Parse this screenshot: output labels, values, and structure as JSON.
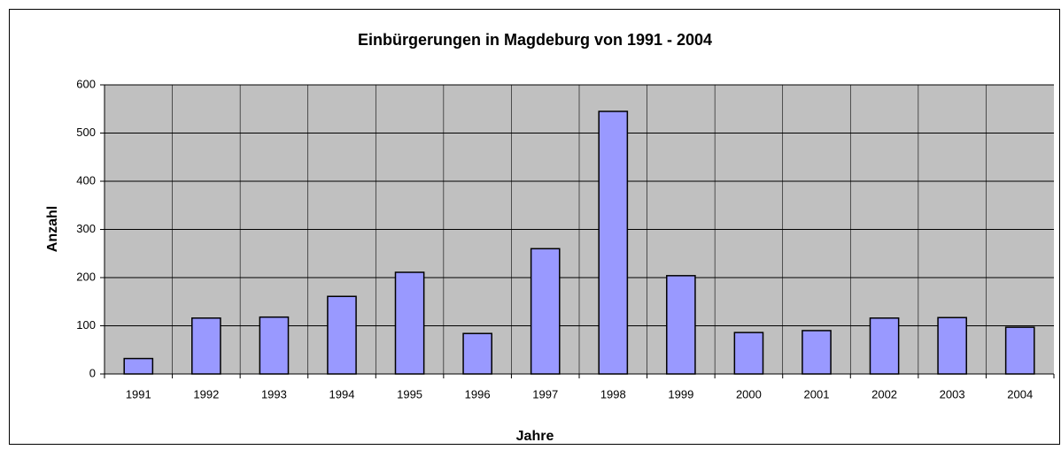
{
  "chart_data": {
    "type": "bar",
    "title": "Einbürgerungen in Magdeburg von 1991 - 2004",
    "x_label": "Jahre",
    "y_label": "Anzahl",
    "categories": [
      "1991",
      "1992",
      "1993",
      "1994",
      "1995",
      "1996",
      "1997",
      "1998",
      "1999",
      "2000",
      "2001",
      "2002",
      "2003",
      "2004"
    ],
    "values": [
      32,
      116,
      118,
      161,
      211,
      84,
      260,
      545,
      204,
      86,
      90,
      116,
      117,
      97
    ],
    "color": "#9999ff",
    "ylim": [
      0,
      600
    ],
    "yticks": [
      0,
      100,
      200,
      300,
      400,
      500,
      600
    ],
    "grid": true
  }
}
